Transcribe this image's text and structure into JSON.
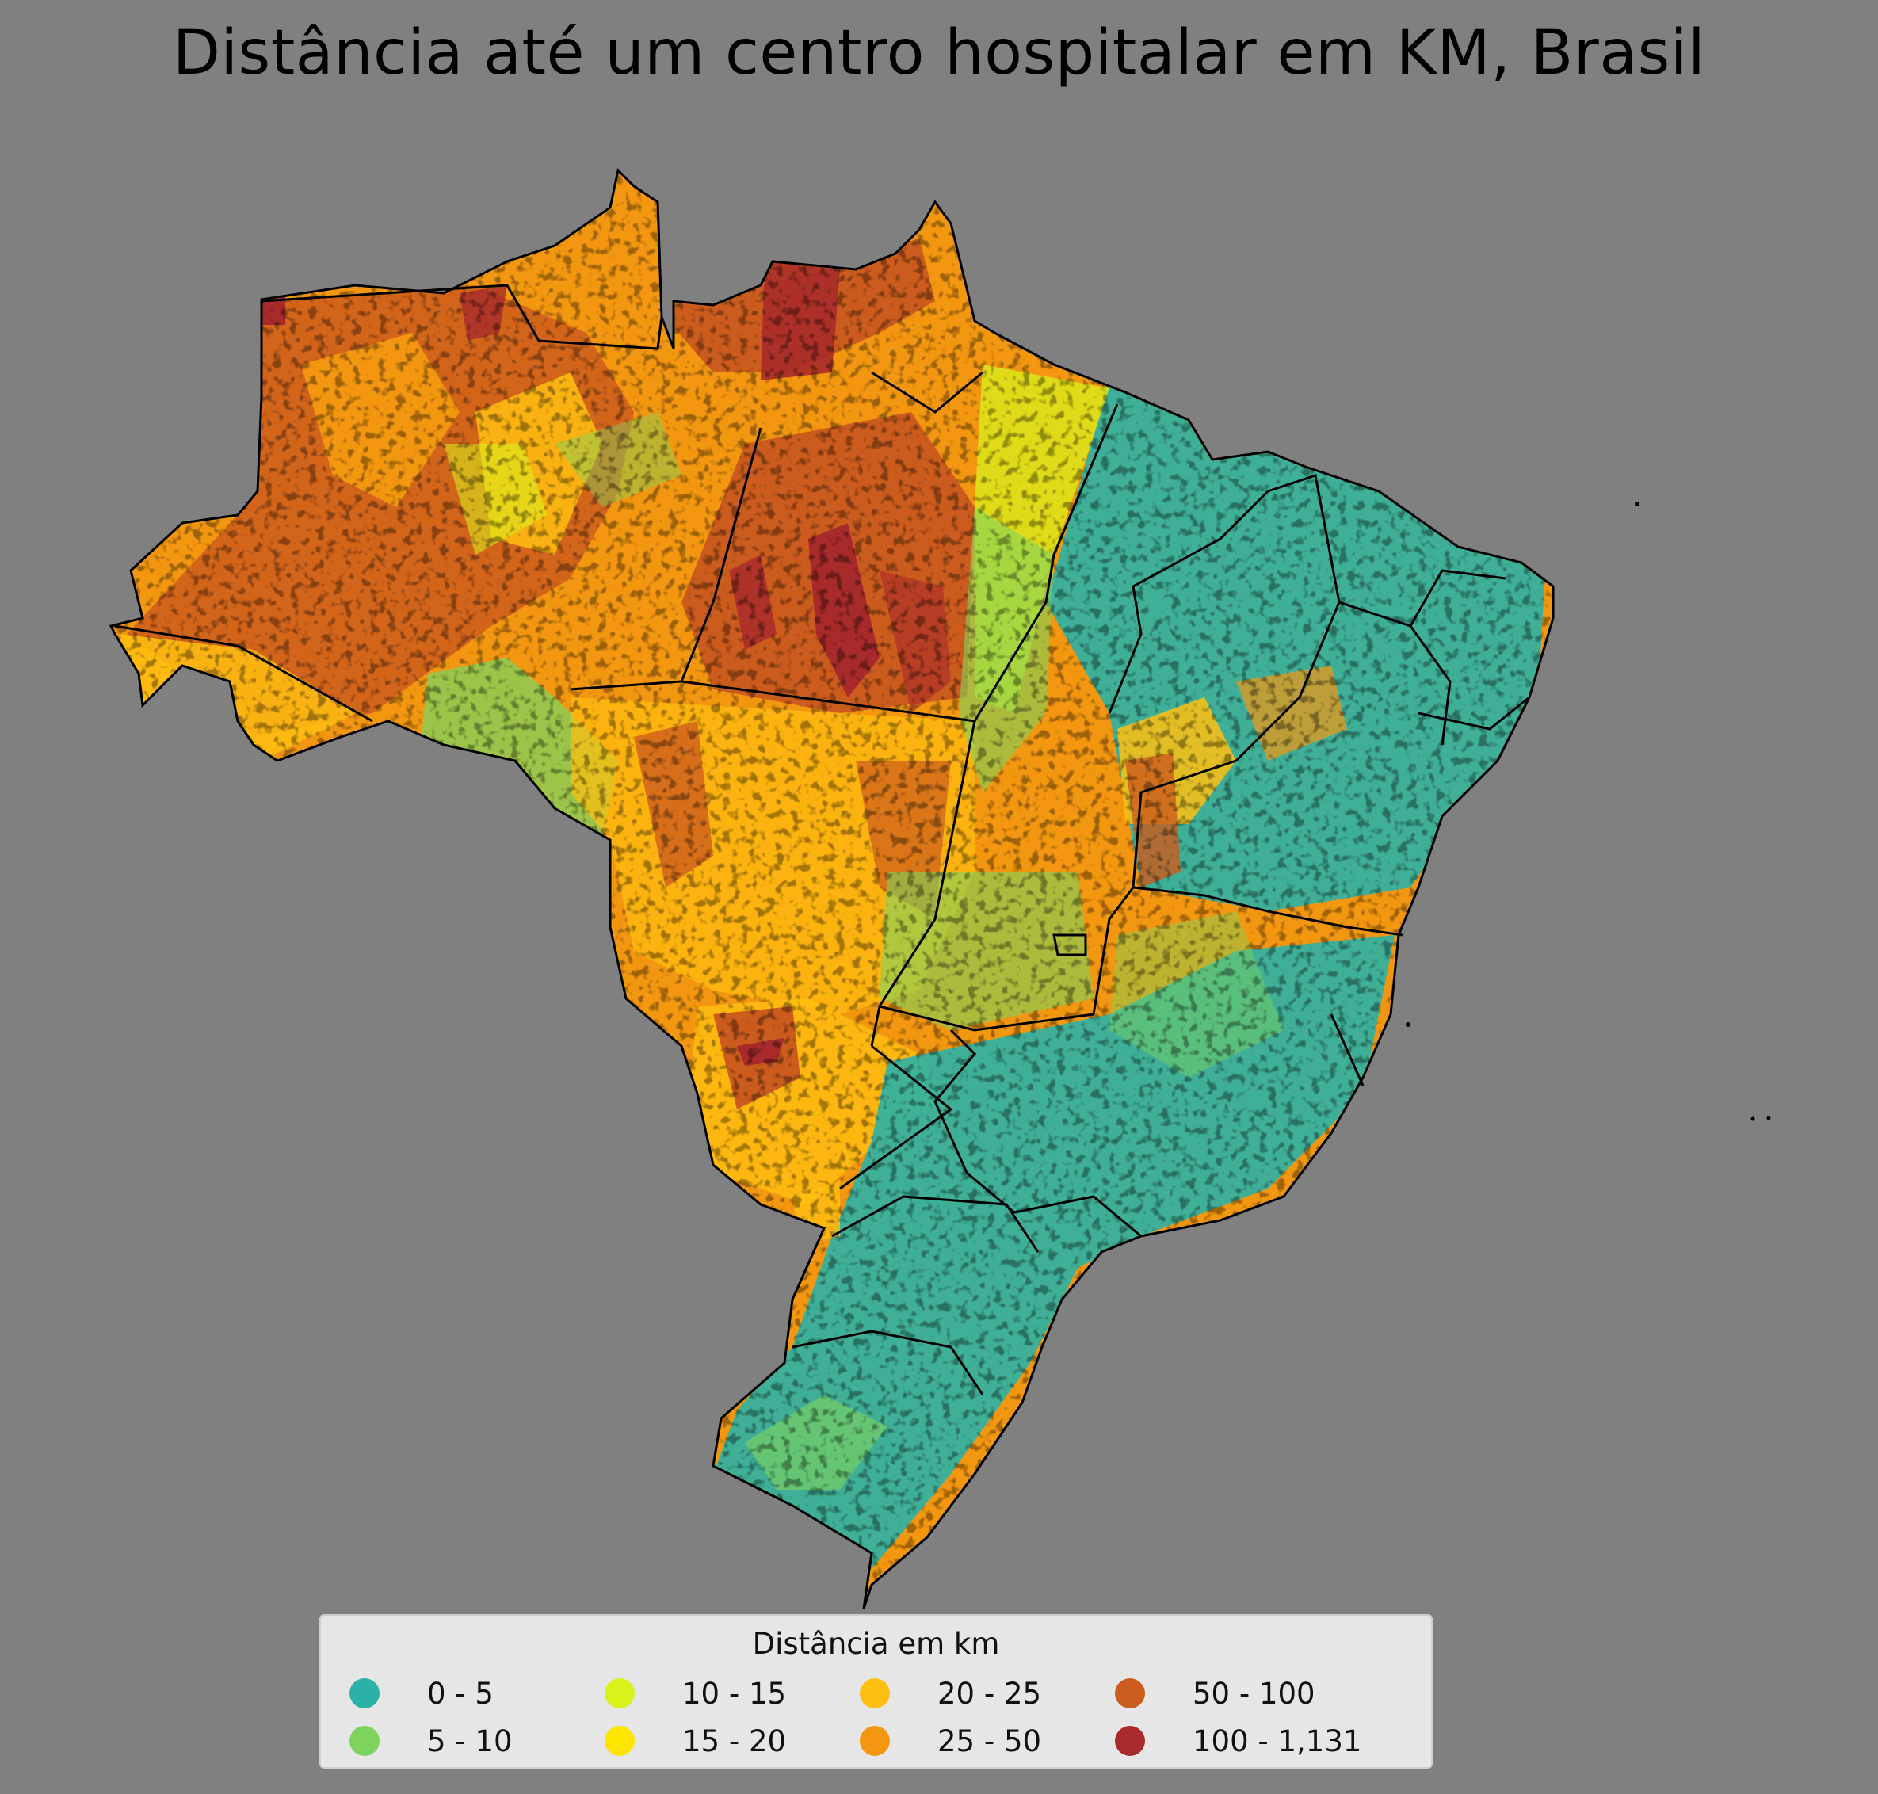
{
  "title": "Distância até um centro hospitalar em KM, Brasil",
  "legend": {
    "title": "Distância em km",
    "items": [
      {
        "label": "0 - 5",
        "color": "#2bb1a6"
      },
      {
        "label": "5 - 10",
        "color": "#7ed35c"
      },
      {
        "label": "10 - 15",
        "color": "#d9f21b"
      },
      {
        "label": "15 - 20",
        "color": "#ffe600"
      },
      {
        "label": "20 - 25",
        "color": "#ffbf10"
      },
      {
        "label": "25 - 50",
        "color": "#f39710"
      },
      {
        "label": "50 - 100",
        "color": "#cc5c1d"
      },
      {
        "label": "100 - 1,131",
        "color": "#a82a2a"
      }
    ]
  }
}
